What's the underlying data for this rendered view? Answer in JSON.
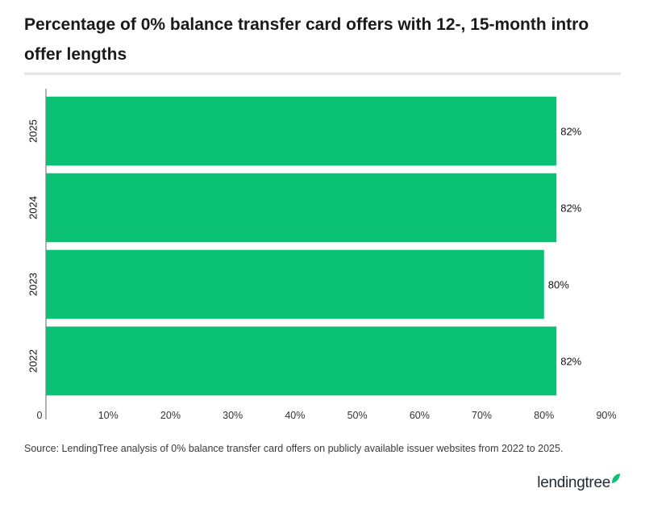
{
  "title": "Percentage of 0% balance transfer card offers with 12-, 15-month intro offer lengths",
  "source": "Source: LendingTree analysis of 0% balance transfer card offers on publicly available issuer websites from 2022 to 2025.",
  "logo": {
    "text": "lendingtree",
    "mark": "leaf-icon"
  },
  "colors": {
    "bar": "#0bc173",
    "axis": "#666666",
    "text": "#111111",
    "divider": "#e6e6e6"
  },
  "chart_data": {
    "type": "bar",
    "orientation": "horizontal",
    "categories": [
      "2025",
      "2024",
      "2023",
      "2022"
    ],
    "values": [
      82,
      82,
      80,
      82
    ],
    "value_labels": [
      "82%",
      "82%",
      "80%",
      "82%"
    ],
    "xlim": [
      0,
      90
    ],
    "xticks": [
      0,
      10,
      20,
      30,
      40,
      50,
      60,
      70,
      80,
      90
    ],
    "xtick_labels": [
      "0",
      "10%",
      "20%",
      "30%",
      "40%",
      "50%",
      "60%",
      "70%",
      "80%",
      "90%"
    ],
    "grid": false,
    "legend": "none"
  }
}
